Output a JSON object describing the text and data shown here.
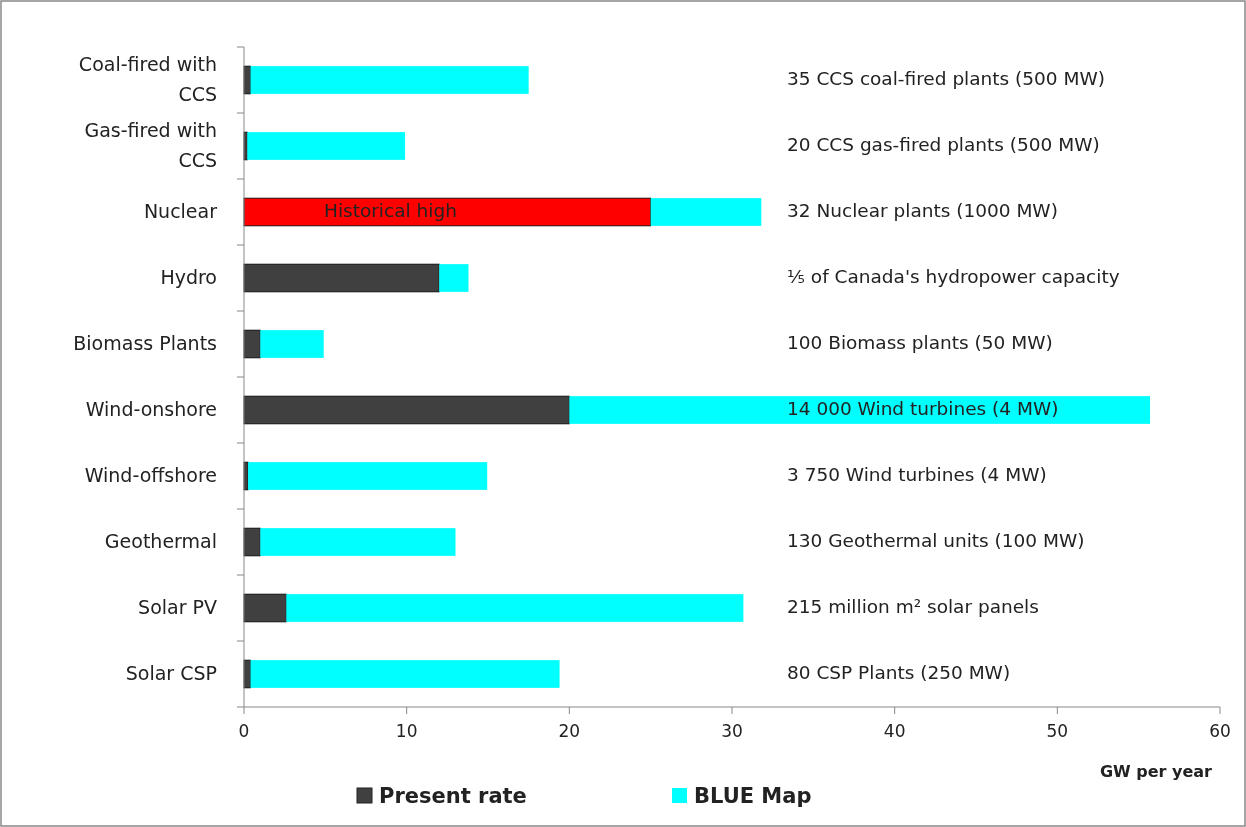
{
  "chart_data": {
    "type": "bar",
    "orientation": "horizontal",
    "stacked": true,
    "categories": [
      "Coal-fired with CCS",
      "Gas-fired with CCS",
      "Nuclear",
      "Hydro",
      "Biomass Plants",
      "Wind-onshore",
      "Wind-offshore",
      "Geothermal",
      "Solar PV",
      "Solar CSP"
    ],
    "series": [
      {
        "name": "Present rate",
        "color": "#404040",
        "colors": [
          "#404040",
          "#404040",
          "#ff0000",
          "#404040",
          "#404040",
          "#404040",
          "#404040",
          "#404040",
          "#404040",
          "#404040"
        ],
        "values": [
          0.4,
          0.2,
          25,
          12,
          1,
          20,
          0.25,
          1,
          2.6,
          0.4
        ],
        "value_labels": [
          null,
          null,
          "Historical high",
          null,
          null,
          null,
          null,
          null,
          null,
          null
        ]
      },
      {
        "name": "BLUE Map",
        "color": "#00ffff",
        "values": [
          17.1,
          9.7,
          6.8,
          1.8,
          3.9,
          35.7,
          14.7,
          12,
          28.1,
          19
        ]
      }
    ],
    "xlabel": "GW  per year",
    "xlim": [
      0,
      60
    ],
    "xticks": [
      0,
      10,
      20,
      30,
      40,
      50,
      60
    ],
    "grid": false,
    "legend": "bottom",
    "annotations": [
      "35 CCS coal-fired plants (500 MW)",
      "20 CCS gas-fired plants (500 MW)",
      "32 Nuclear plants (1000 MW)",
      "⅕  of Canada's hydropower capacity",
      "100  Biomass plants (50 MW)",
      "14 000 Wind turbines (4 MW)",
      "3 750 Wind turbines (4 MW)",
      "130 Geothermal units (100 MW)",
      "215 million m² solar panels",
      "80 CSP Plants (250 MW)"
    ]
  }
}
